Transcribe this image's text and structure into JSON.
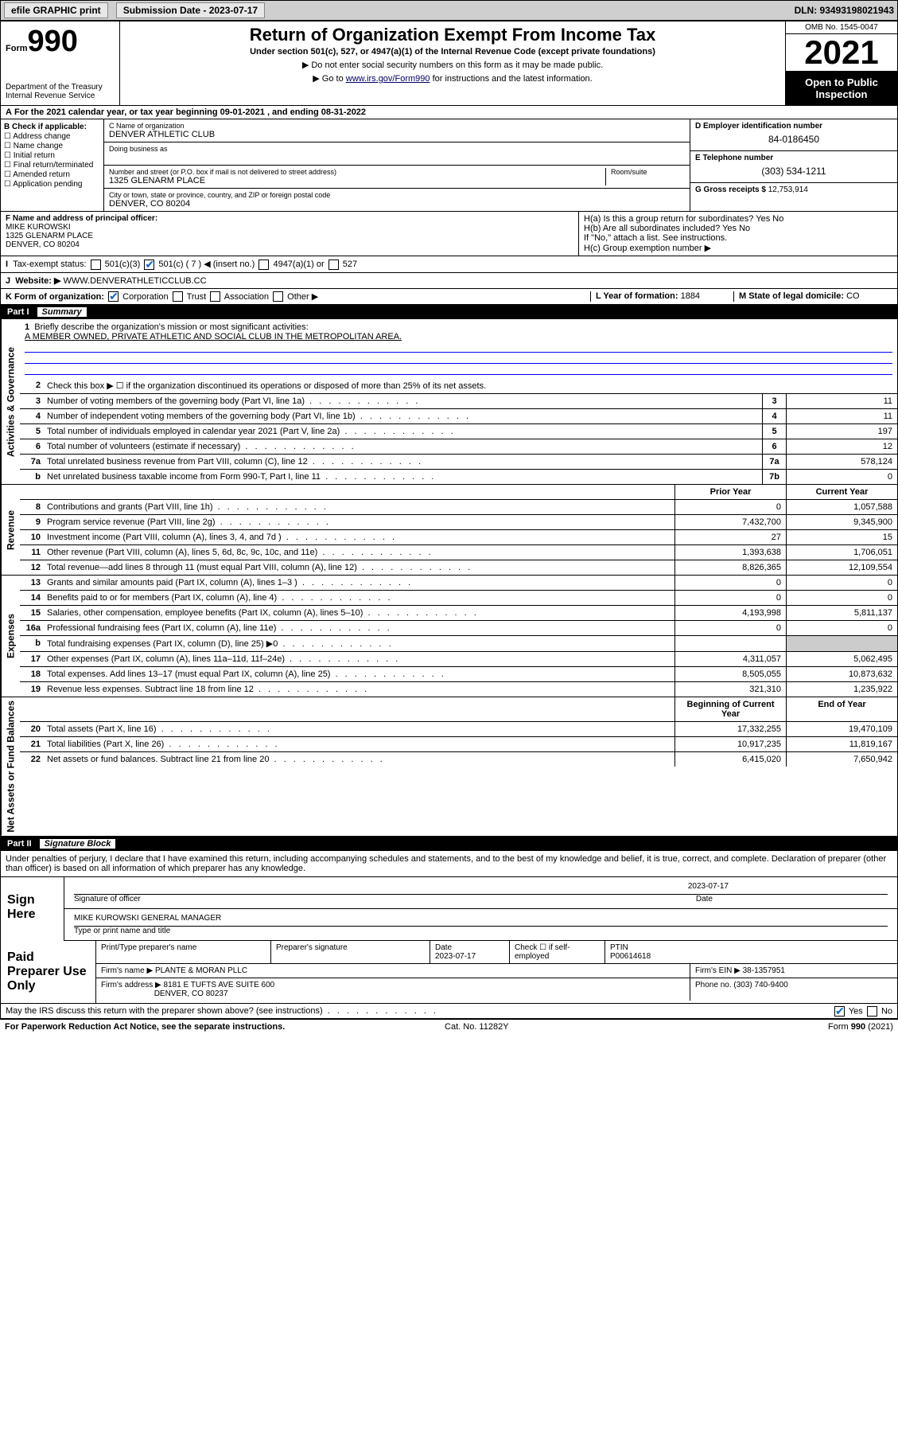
{
  "topbar": {
    "efile": "efile GRAPHIC print",
    "submission": "Submission Date - 2023-07-17",
    "dln": "DLN: 93493198021943"
  },
  "header": {
    "form_label": "Form",
    "form_num": "990",
    "dept": "Department of the Treasury\nInternal Revenue Service",
    "title": "Return of Organization Exempt From Income Tax",
    "subtitle": "Under section 501(c), 527, or 4947(a)(1) of the Internal Revenue Code (except private foundations)",
    "arrow1": "▶ Do not enter social security numbers on this form as it may be made public.",
    "arrow2_pre": "▶ Go to ",
    "arrow2_link": "www.irs.gov/Form990",
    "arrow2_post": " for instructions and the latest information.",
    "omb": "OMB No. 1545-0047",
    "year": "2021",
    "inspect": "Open to Public Inspection"
  },
  "rowA": "For the 2021 calendar year, or tax year beginning 09-01-2021   , and ending 08-31-2022",
  "colB": {
    "label": "B Check if applicable:",
    "opts": [
      "Address change",
      "Name change",
      "Initial return",
      "Final return/terminated",
      "Amended return",
      "Application pending"
    ]
  },
  "colC": {
    "name_label": "C Name of organization",
    "name": "DENVER ATHLETIC CLUB",
    "dba_label": "Doing business as",
    "street_label": "Number and street (or P.O. box if mail is not delivered to street address)",
    "room_label": "Room/suite",
    "street": "1325 GLENARM PLACE",
    "city_label": "City or town, state or province, country, and ZIP or foreign postal code",
    "city": "DENVER, CO  80204"
  },
  "colD": {
    "ein_label": "D Employer identification number",
    "ein": "84-0186450",
    "phone_label": "E Telephone number",
    "phone": "(303) 534-1211",
    "gross_label": "G Gross receipts $",
    "gross": "12,753,914"
  },
  "rowF": {
    "label": "F Name and address of principal officer:",
    "name": "MIKE KUROWSKI",
    "addr1": "1325 GLENARM PLACE",
    "addr2": "DENVER, CO  80204"
  },
  "rowH": {
    "ha": "H(a)  Is this a group return for subordinates?",
    "hb": "H(b)  Are all subordinates included?",
    "hb_note": "If \"No,\" attach a list. See instructions.",
    "hc": "H(c)  Group exemption number ▶",
    "yes": "Yes",
    "no": "No"
  },
  "rowI": {
    "label": "Tax-exempt status:",
    "o1": "501(c)(3)",
    "o2": "501(c) ( 7 ) ◀ (insert no.)",
    "o3": "4947(a)(1) or",
    "o4": "527"
  },
  "rowJ": {
    "label": "Website: ▶",
    "val": "WWW.DENVERATHLETICCLUB.CC"
  },
  "rowK": {
    "label": "K Form of organization:",
    "o1": "Corporation",
    "o2": "Trust",
    "o3": "Association",
    "o4": "Other ▶"
  },
  "rowL": {
    "label": "L Year of formation:",
    "val": "1884"
  },
  "rowM": {
    "label": "M State of legal domicile:",
    "val": "CO"
  },
  "part1": {
    "hdr_num": "Part I",
    "hdr_title": "Summary",
    "line1_label": "Briefly describe the organization's mission or most significant activities:",
    "line1_val": "A MEMBER OWNED, PRIVATE ATHLETIC AND SOCIAL CLUB IN THE METROPOLITAN AREA.",
    "line2": "Check this box ▶ ☐  if the organization discontinued its operations or disposed of more than 25% of its net assets.",
    "sections": {
      "gov": "Activities & Governance",
      "rev": "Revenue",
      "exp": "Expenses",
      "net": "Net Assets or Fund Balances"
    },
    "hdr_prior": "Prior Year",
    "hdr_current": "Current Year",
    "hdr_beg": "Beginning of Current Year",
    "hdr_end": "End of Year",
    "rows_gov": [
      {
        "n": "3",
        "t": "Number of voting members of the governing body (Part VI, line 1a)",
        "box": "3",
        "v": "11"
      },
      {
        "n": "4",
        "t": "Number of independent voting members of the governing body (Part VI, line 1b)",
        "box": "4",
        "v": "11"
      },
      {
        "n": "5",
        "t": "Total number of individuals employed in calendar year 2021 (Part V, line 2a)",
        "box": "5",
        "v": "197"
      },
      {
        "n": "6",
        "t": "Total number of volunteers (estimate if necessary)",
        "box": "6",
        "v": "12"
      },
      {
        "n": "7a",
        "t": "Total unrelated business revenue from Part VIII, column (C), line 12",
        "box": "7a",
        "v": "578,124"
      },
      {
        "n": "b",
        "t": "Net unrelated business taxable income from Form 990-T, Part I, line 11",
        "box": "7b",
        "v": "0"
      }
    ],
    "rows_rev": [
      {
        "n": "8",
        "t": "Contributions and grants (Part VIII, line 1h)",
        "p": "0",
        "c": "1,057,588"
      },
      {
        "n": "9",
        "t": "Program service revenue (Part VIII, line 2g)",
        "p": "7,432,700",
        "c": "9,345,900"
      },
      {
        "n": "10",
        "t": "Investment income (Part VIII, column (A), lines 3, 4, and 7d )",
        "p": "27",
        "c": "15"
      },
      {
        "n": "11",
        "t": "Other revenue (Part VIII, column (A), lines 5, 6d, 8c, 9c, 10c, and 11e)",
        "p": "1,393,638",
        "c": "1,706,051"
      },
      {
        "n": "12",
        "t": "Total revenue—add lines 8 through 11 (must equal Part VIII, column (A), line 12)",
        "p": "8,826,365",
        "c": "12,109,554"
      }
    ],
    "rows_exp": [
      {
        "n": "13",
        "t": "Grants and similar amounts paid (Part IX, column (A), lines 1–3 )",
        "p": "0",
        "c": "0"
      },
      {
        "n": "14",
        "t": "Benefits paid to or for members (Part IX, column (A), line 4)",
        "p": "0",
        "c": "0"
      },
      {
        "n": "15",
        "t": "Salaries, other compensation, employee benefits (Part IX, column (A), lines 5–10)",
        "p": "4,193,998",
        "c": "5,811,137"
      },
      {
        "n": "16a",
        "t": "Professional fundraising fees (Part IX, column (A), line 11e)",
        "p": "0",
        "c": "0"
      },
      {
        "n": "b",
        "t": "Total fundraising expenses (Part IX, column (D), line 25) ▶0",
        "p": "",
        "c": "",
        "shade": true
      },
      {
        "n": "17",
        "t": "Other expenses (Part IX, column (A), lines 11a–11d, 11f–24e)",
        "p": "4,311,057",
        "c": "5,062,495"
      },
      {
        "n": "18",
        "t": "Total expenses. Add lines 13–17 (must equal Part IX, column (A), line 25)",
        "p": "8,505,055",
        "c": "10,873,632"
      },
      {
        "n": "19",
        "t": "Revenue less expenses. Subtract line 18 from line 12",
        "p": "321,310",
        "c": "1,235,922"
      }
    ],
    "rows_net": [
      {
        "n": "20",
        "t": "Total assets (Part X, line 16)",
        "p": "17,332,255",
        "c": "19,470,109"
      },
      {
        "n": "21",
        "t": "Total liabilities (Part X, line 26)",
        "p": "10,917,235",
        "c": "11,819,167"
      },
      {
        "n": "22",
        "t": "Net assets or fund balances. Subtract line 21 from line 20",
        "p": "6,415,020",
        "c": "7,650,942"
      }
    ]
  },
  "part2": {
    "hdr_num": "Part II",
    "hdr_title": "Signature Block",
    "decl": "Under penalties of perjury, I declare that I have examined this return, including accompanying schedules and statements, and to the best of my knowledge and belief, it is true, correct, and complete. Declaration of preparer (other than officer) is based on all information of which preparer has any knowledge.",
    "sign_here": "Sign Here",
    "sig_officer": "Signature of officer",
    "sig_date_label": "Date",
    "sig_date": "2023-07-17",
    "sig_name": "MIKE KUROWSKI  GENERAL MANAGER",
    "sig_name_label": "Type or print name and title",
    "paid": "Paid Preparer Use Only",
    "prep_name_label": "Print/Type preparer's name",
    "prep_sig_label": "Preparer's signature",
    "prep_date_label": "Date",
    "prep_date": "2023-07-17",
    "prep_self": "Check ☐ if self-employed",
    "ptin_label": "PTIN",
    "ptin": "P00614618",
    "firm_name_label": "Firm's name    ▶",
    "firm_name": "PLANTE & MORAN PLLC",
    "firm_ein_label": "Firm's EIN ▶",
    "firm_ein": "38-1357951",
    "firm_addr_label": "Firm's address ▶",
    "firm_addr1": "8181 E TUFTS AVE SUITE 600",
    "firm_addr2": "DENVER, CO  80237",
    "firm_phone_label": "Phone no.",
    "firm_phone": "(303) 740-9400",
    "discuss": "May the IRS discuss this return with the preparer shown above? (see instructions)",
    "yes": "Yes",
    "no": "No"
  },
  "footer": {
    "left": "For Paperwork Reduction Act Notice, see the separate instructions.",
    "mid": "Cat. No. 11282Y",
    "right": "Form 990 (2021)"
  }
}
